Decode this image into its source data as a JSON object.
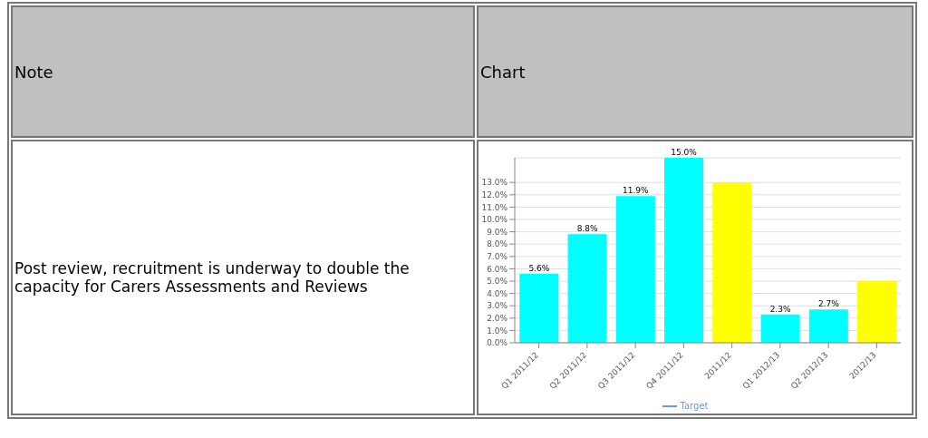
{
  "chart_data": {
    "type": "bar",
    "annotations": [
      "Note",
      "Chart",
      "Post review, recruitment is underway to double the capacity for Carers Assessments and Reviews"
    ],
    "categories": [
      "Q1 2011/12",
      "Q2 2011/12",
      "Q3 2011/12",
      "Q4 2011/12",
      "2011/12",
      "Q1 2012/13",
      "Q2 2012/13",
      "2012/13"
    ],
    "series": [
      {
        "values": [
          5.6,
          8.8,
          11.9,
          15.0,
          13,
          2.3,
          2.7,
          5.0
        ],
        "colors": [
          "#00ffff",
          "#00ffff",
          "#00ffff",
          "#00ffff",
          "#ffff00",
          "#00ffff",
          "#00ffff",
          "#ffff00"
        ],
        "value_labels": [
          "5.6%",
          "8.8%",
          "11.9%",
          "15.0%",
          null,
          "2.3%",
          "2.7%",
          null
        ]
      },
      {
        "type": "line",
        "name": "Target",
        "color": "#6699ff",
        "values": [
          null,
          null,
          null,
          null,
          null,
          null,
          null,
          null
        ]
      }
    ],
    "ylim": [
      0,
      15
    ],
    "yticks": [
      {
        "value": 0,
        "label": "0.0%"
      },
      {
        "value": 1,
        "label": "1.0%"
      },
      {
        "value": 2,
        "label": "2.0%"
      },
      {
        "value": 3,
        "label": "3.0%"
      },
      {
        "value": 4,
        "label": "4.0%"
      },
      {
        "value": 5,
        "label": "5.0%"
      },
      {
        "value": 6,
        "label": "6.0%"
      },
      {
        "value": 7,
        "label": "7.0%"
      },
      {
        "value": 8,
        "label": "8.0%"
      },
      {
        "value": 9,
        "label": "9.0%"
      },
      {
        "value": 10,
        "label": "10.0%"
      },
      {
        "value": 11,
        "label": "11.0%"
      },
      {
        "value": 12,
        "label": "12.0%"
      },
      {
        "value": 13,
        "label": "13.0%"
      }
    ],
    "grid": "y",
    "legend": "bottom"
  }
}
